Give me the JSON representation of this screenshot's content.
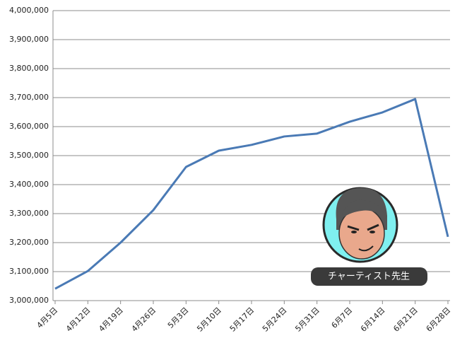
{
  "chart_data": {
    "type": "line",
    "categories": [
      "4月5日",
      "4月12日",
      "4月19日",
      "4月26日",
      "5月3日",
      "5月10日",
      "5月17日",
      "5月24日",
      "5月31日",
      "6月7日",
      "6月14日",
      "6月21日",
      "6月28日"
    ],
    "series": [
      {
        "color": "#4a7ab5",
        "values": [
          3041000,
          3102000,
          3200000,
          3312000,
          3461000,
          3517000,
          3537000,
          3566000,
          3576000,
          3617000,
          3649000,
          3695000,
          3220000
        ]
      }
    ],
    "ylim": [
      3000000,
      4000000
    ],
    "yticks": [
      {
        "value": 3000000,
        "label": "3,000,000"
      },
      {
        "value": 3100000,
        "label": "3,100,000"
      },
      {
        "value": 3200000,
        "label": "3,200,000"
      },
      {
        "value": 3300000,
        "label": "3,300,000"
      },
      {
        "value": 3400000,
        "label": "3,400,000"
      },
      {
        "value": 3500000,
        "label": "3,500,000"
      },
      {
        "value": 3600000,
        "label": "3,600,000"
      },
      {
        "value": 3700000,
        "label": "3,700,000"
      },
      {
        "value": 3800000,
        "label": "3,800,000"
      },
      {
        "value": 3900000,
        "label": "3,900,000"
      },
      {
        "value": 4000000,
        "label": "4,000,000"
      }
    ],
    "grid": true,
    "annotation": "チャーティスト先生"
  }
}
